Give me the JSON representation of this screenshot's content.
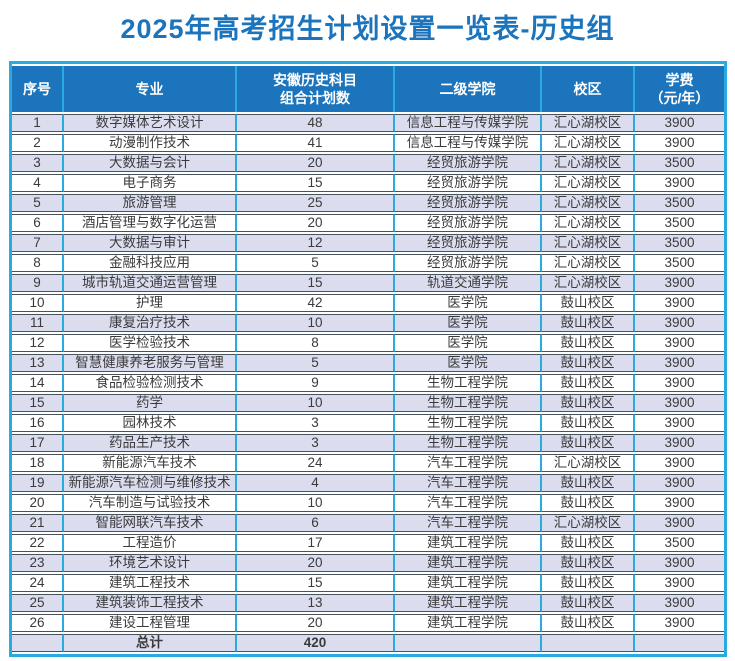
{
  "title": "2025年高考招生计划设置一览表-历史组",
  "colors": {
    "title_blue": "#1b74bc",
    "header_bg": "#1c75bc",
    "grid_cyan": "#29abe2",
    "alt_row_lavender": "#dbdcee",
    "row_separator": "#46525c",
    "body_text": "#3a3a3a"
  },
  "table": {
    "headers": [
      "序号",
      "专业",
      "安徽历史科目\n组合计划数",
      "二级学院",
      "校区",
      "学费\n（元/年）"
    ],
    "rows": [
      [
        "1",
        "数字媒体艺术设计",
        "48",
        "信息工程与传媒学院",
        "汇心湖校区",
        "3900"
      ],
      [
        "2",
        "动漫制作技术",
        "41",
        "信息工程与传媒学院",
        "汇心湖校区",
        "3900"
      ],
      [
        "3",
        "大数据与会计",
        "20",
        "经贸旅游学院",
        "汇心湖校区",
        "3500"
      ],
      [
        "4",
        "电子商务",
        "15",
        "经贸旅游学院",
        "汇心湖校区",
        "3900"
      ],
      [
        "5",
        "旅游管理",
        "25",
        "经贸旅游学院",
        "汇心湖校区",
        "3500"
      ],
      [
        "6",
        "酒店管理与数字化运营",
        "20",
        "经贸旅游学院",
        "汇心湖校区",
        "3500"
      ],
      [
        "7",
        "大数据与审计",
        "12",
        "经贸旅游学院",
        "汇心湖校区",
        "3500"
      ],
      [
        "8",
        "金融科技应用",
        "5",
        "经贸旅游学院",
        "汇心湖校区",
        "3500"
      ],
      [
        "9",
        "城市轨道交通运营管理",
        "15",
        "轨道交通学院",
        "汇心湖校区",
        "3900"
      ],
      [
        "10",
        "护理",
        "42",
        "医学院",
        "鼓山校区",
        "3900"
      ],
      [
        "11",
        "康复治疗技术",
        "10",
        "医学院",
        "鼓山校区",
        "3900"
      ],
      [
        "12",
        "医学检验技术",
        "8",
        "医学院",
        "鼓山校区",
        "3900"
      ],
      [
        "13",
        "智慧健康养老服务与管理",
        "5",
        "医学院",
        "鼓山校区",
        "3900"
      ],
      [
        "14",
        "食品检验检测技术",
        "9",
        "生物工程学院",
        "鼓山校区",
        "3900"
      ],
      [
        "15",
        "药学",
        "10",
        "生物工程学院",
        "鼓山校区",
        "3900"
      ],
      [
        "16",
        "园林技术",
        "3",
        "生物工程学院",
        "鼓山校区",
        "3900"
      ],
      [
        "17",
        "药品生产技术",
        "3",
        "生物工程学院",
        "鼓山校区",
        "3900"
      ],
      [
        "18",
        "新能源汽车技术",
        "24",
        "汽车工程学院",
        "汇心湖校区",
        "3900"
      ],
      [
        "19",
        "新能源汽车检测与维修技术",
        "4",
        "汽车工程学院",
        "鼓山校区",
        "3900"
      ],
      [
        "20",
        "汽车制造与试验技术",
        "10",
        "汽车工程学院",
        "鼓山校区",
        "3900"
      ],
      [
        "21",
        "智能网联汽车技术",
        "6",
        "汽车工程学院",
        "汇心湖校区",
        "3900"
      ],
      [
        "22",
        "工程造价",
        "17",
        "建筑工程学院",
        "鼓山校区",
        "3500"
      ],
      [
        "23",
        "环境艺术设计",
        "20",
        "建筑工程学院",
        "鼓山校区",
        "3900"
      ],
      [
        "24",
        "建筑工程技术",
        "15",
        "建筑工程学院",
        "鼓山校区",
        "3900"
      ],
      [
        "25",
        "建筑装饰工程技术",
        "13",
        "建筑工程学院",
        "鼓山校区",
        "3900"
      ],
      [
        "26",
        "建设工程管理",
        "20",
        "建筑工程学院",
        "鼓山校区",
        "3900"
      ]
    ],
    "total": {
      "label": "总计",
      "value": "420"
    }
  }
}
